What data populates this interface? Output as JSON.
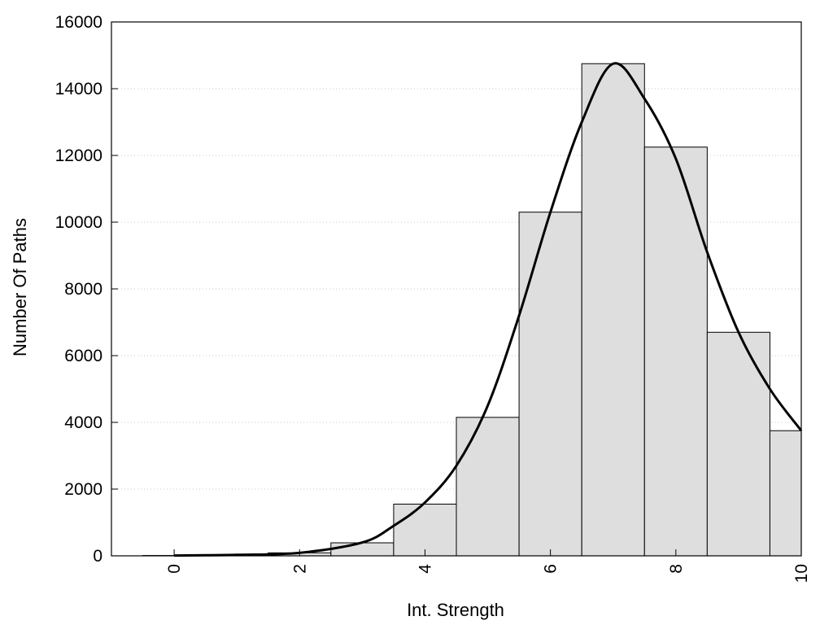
{
  "chart_data": {
    "type": "bar",
    "title": "",
    "xlabel": "Int. Strength",
    "ylabel": "Number Of Paths",
    "xlim": [
      -1,
      10
    ],
    "ylim": [
      0,
      16000
    ],
    "x_ticks": [
      0,
      2,
      4,
      6,
      8,
      10
    ],
    "y_ticks": [
      0,
      2000,
      4000,
      6000,
      8000,
      10000,
      12000,
      14000,
      16000
    ],
    "grid": "horizontal-dotted",
    "bar_color": "#dedede",
    "bar_edge_color": "#000000",
    "bins": [
      {
        "x": 0,
        "value": 10
      },
      {
        "x": 1,
        "value": 25
      },
      {
        "x": 2,
        "value": 90
      },
      {
        "x": 3,
        "value": 390
      },
      {
        "x": 4,
        "value": 1550
      },
      {
        "x": 5,
        "value": 4150
      },
      {
        "x": 6,
        "value": 10300
      },
      {
        "x": 7,
        "value": 14750
      },
      {
        "x": 8,
        "value": 12250
      },
      {
        "x": 9,
        "value": 6700
      },
      {
        "x": 10,
        "value": 3750
      }
    ],
    "curve": {
      "type": "line",
      "color": "#000000",
      "points": [
        [
          0,
          10
        ],
        [
          1,
          30
        ],
        [
          2,
          90
        ],
        [
          3,
          400
        ],
        [
          3.5,
          900
        ],
        [
          4,
          1600
        ],
        [
          4.5,
          2700
        ],
        [
          5,
          4500
        ],
        [
          5.5,
          7200
        ],
        [
          6,
          10300
        ],
        [
          6.5,
          13000
        ],
        [
          7,
          14750
        ],
        [
          7.5,
          13700
        ],
        [
          8,
          11900
        ],
        [
          8.5,
          9100
        ],
        [
          9,
          6700
        ],
        [
          9.5,
          5000
        ],
        [
          10,
          3750
        ]
      ]
    }
  }
}
